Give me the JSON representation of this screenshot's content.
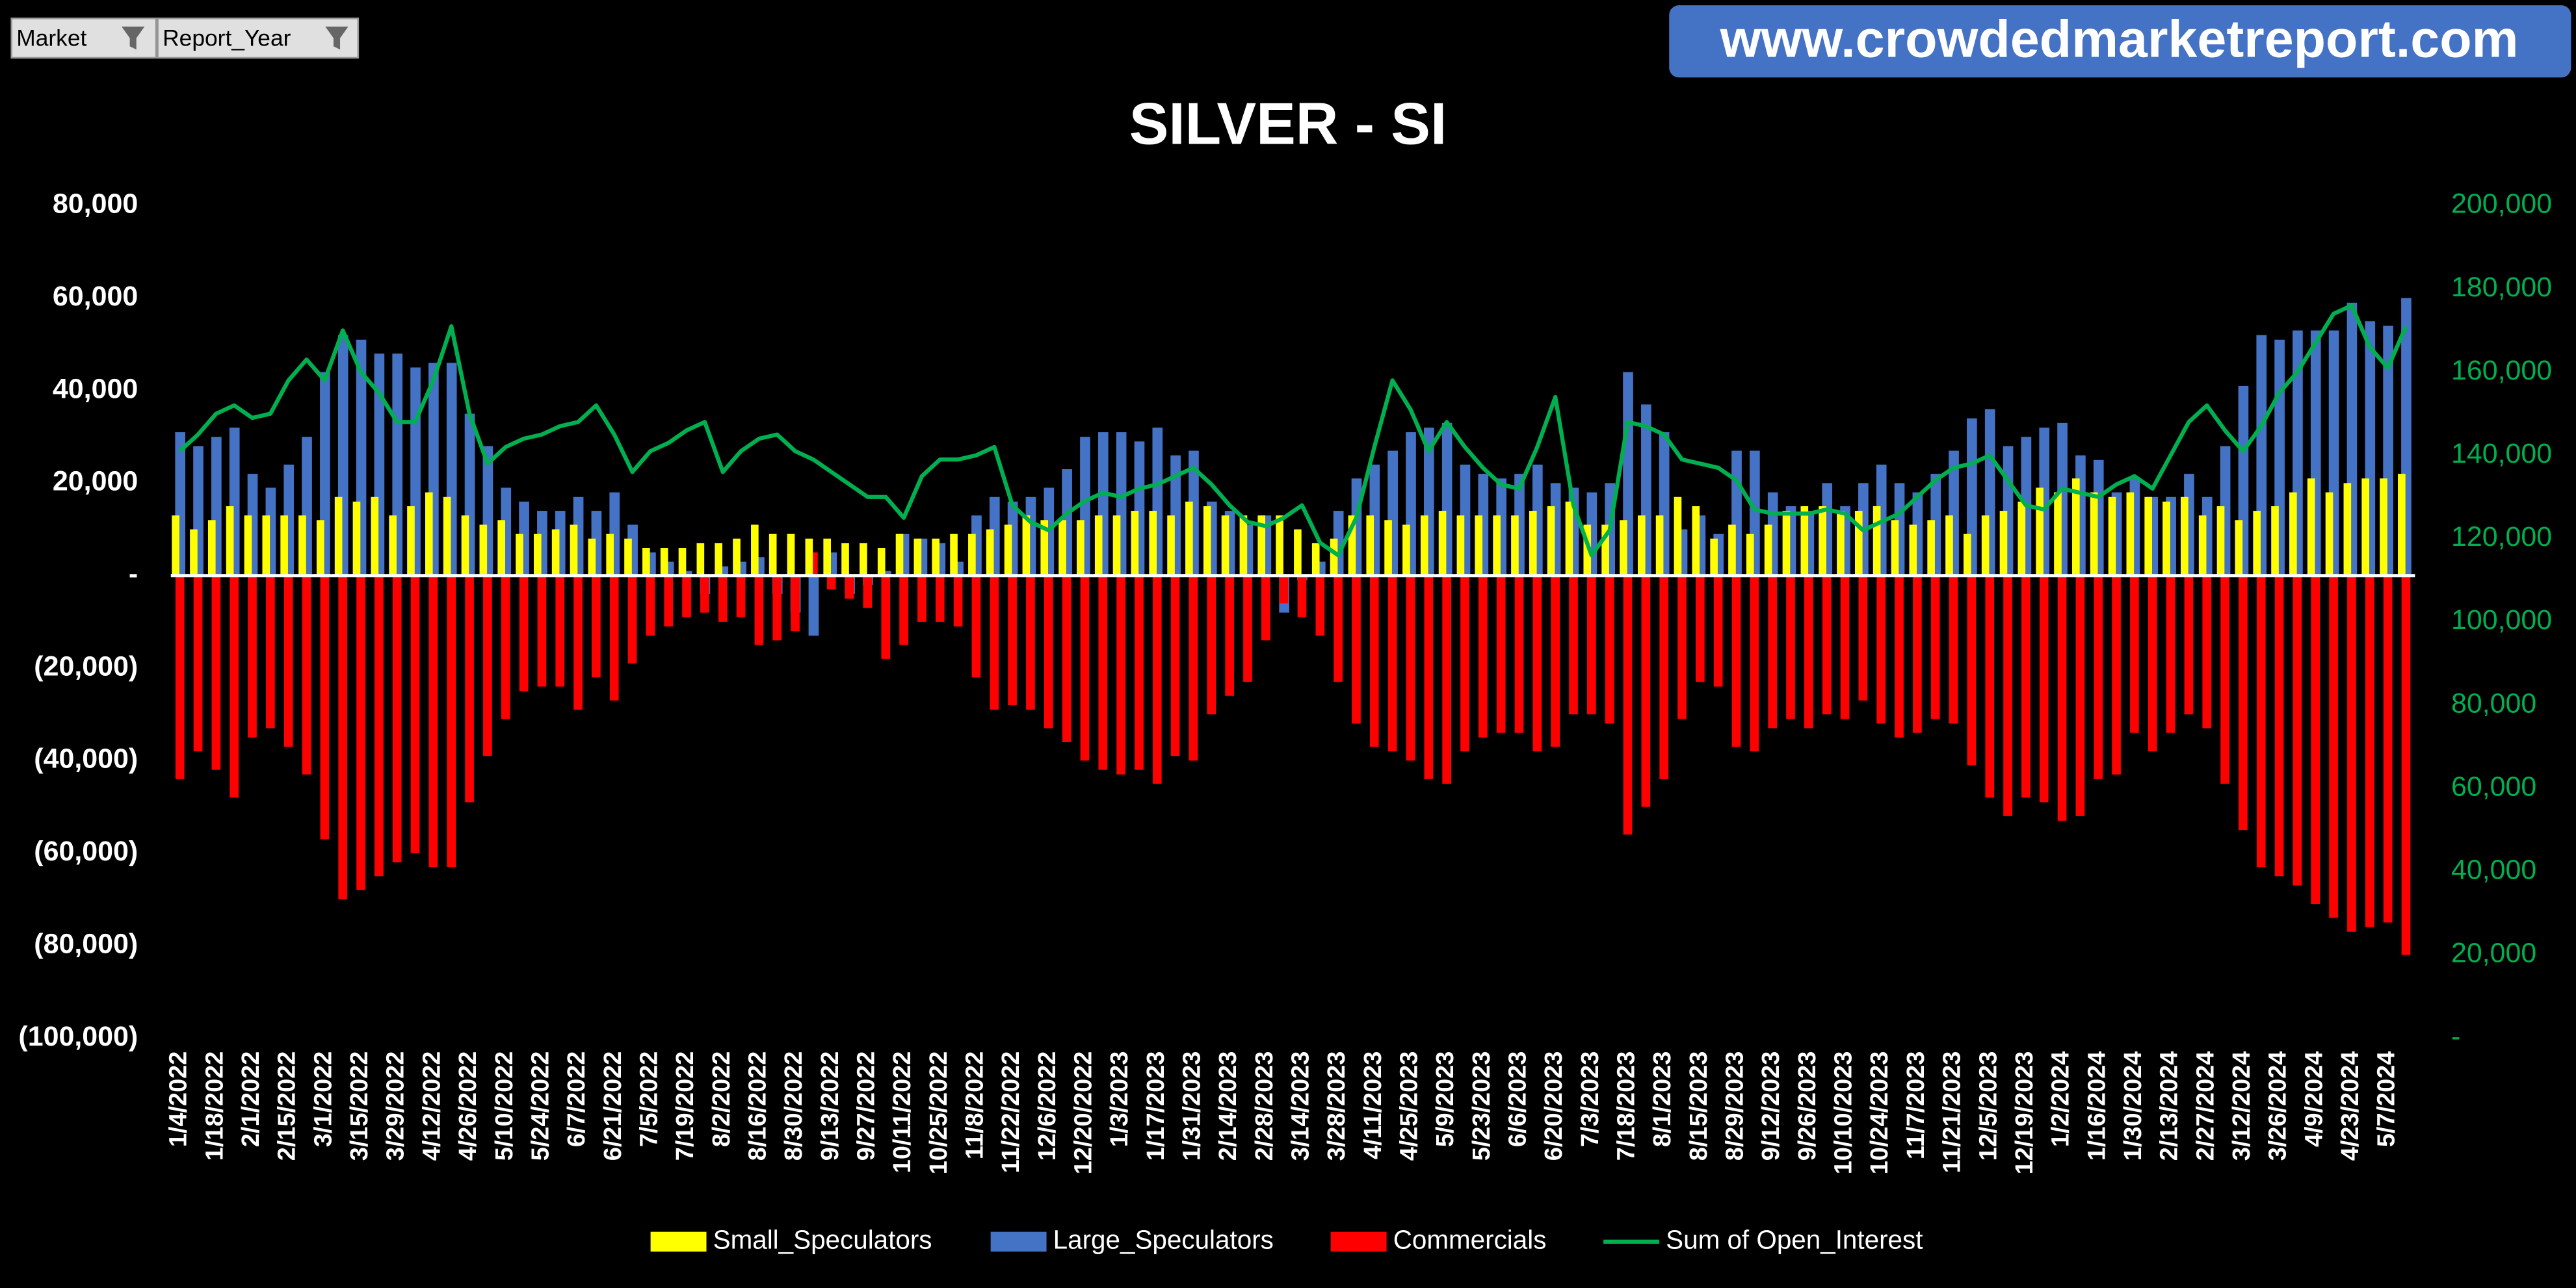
{
  "filters": [
    "Market",
    "Report_Year"
  ],
  "banner": "www.crowdedmarketreport.com",
  "chart_data": {
    "type": "bar",
    "title": "SILVER - SI",
    "categories": [
      "1/4/2022",
      null,
      "1/18/2022",
      null,
      "2/1/2022",
      null,
      "2/15/2022",
      null,
      "3/1/2022",
      null,
      "3/15/2022",
      null,
      "3/29/2022",
      null,
      "4/12/2022",
      null,
      "4/26/2022",
      null,
      "5/10/2022",
      null,
      "5/24/2022",
      null,
      "6/7/2022",
      null,
      "6/21/2022",
      null,
      "7/5/2022",
      null,
      "7/19/2022",
      null,
      "8/2/2022",
      null,
      "8/16/2022",
      null,
      "8/30/2022",
      null,
      "9/13/2022",
      null,
      "9/27/2022",
      null,
      "10/11/2022",
      null,
      "10/25/2022",
      null,
      "11/8/2022",
      null,
      "11/22/2022",
      null,
      "12/6/2022",
      null,
      "12/20/2022",
      null,
      "1/3/2023",
      null,
      "1/17/2023",
      null,
      "1/31/2023",
      null,
      "2/14/2023",
      null,
      "2/28/2023",
      null,
      "3/14/2023",
      null,
      "3/28/2023",
      null,
      "4/11/2023",
      null,
      "4/25/2023",
      null,
      "5/9/2023",
      null,
      "5/23/2023",
      null,
      "6/6/2023",
      null,
      "6/20/2023",
      null,
      "7/3/2023",
      null,
      "7/18/2023",
      null,
      "8/1/2023",
      null,
      "8/15/2023",
      null,
      "8/29/2023",
      null,
      "9/12/2023",
      null,
      "9/26/2023",
      null,
      "10/10/2023",
      null,
      "10/24/2023",
      null,
      "11/7/2023",
      null,
      "11/21/2023",
      null,
      "12/5/2023",
      null,
      "12/19/2023",
      null,
      "1/2/2024",
      null,
      "1/16/2024",
      null,
      "1/30/2024",
      null,
      "2/13/2024",
      null,
      "2/27/2024",
      null,
      "3/12/2024",
      null,
      "3/26/2024",
      null,
      "4/9/2024",
      null,
      "4/23/2024",
      null,
      "5/7/2024",
      null
    ],
    "series": [
      {
        "name": "Small_Speculators",
        "color": "#ffff00",
        "values": [
          13000,
          10000,
          12000,
          15000,
          13000,
          13000,
          13000,
          13000,
          12000,
          17000,
          16000,
          17000,
          13000,
          15000,
          18000,
          17000,
          13000,
          11000,
          12000,
          9000,
          9000,
          10000,
          11000,
          8000,
          9000,
          8000,
          6000,
          6000,
          6000,
          7000,
          7000,
          8000,
          11000,
          9000,
          9000,
          8000,
          8000,
          7000,
          7000,
          6000,
          9000,
          8000,
          8000,
          9000,
          9000,
          10000,
          11000,
          13000,
          12000,
          12000,
          12000,
          13000,
          13000,
          14000,
          14000,
          13000,
          16000,
          15000,
          13000,
          13000,
          13000,
          13000,
          10000,
          7000,
          8000,
          13000,
          13000,
          12000,
          11000,
          13000,
          14000,
          13000,
          13000,
          13000,
          13000,
          14000,
          15000,
          16000,
          11000,
          11000,
          12000,
          13000,
          13000,
          17000,
          15000,
          8000,
          11000,
          9000,
          11000,
          14000,
          15000,
          15000,
          14000,
          14000,
          15000,
          12000,
          11000,
          12000,
          13000,
          9000,
          13000,
          14000,
          16000,
          19000,
          18000,
          21000,
          18000,
          17000,
          18000,
          17000,
          16000,
          17000,
          13000,
          15000,
          12000,
          14000,
          15000,
          18000,
          21000,
          18000,
          20000,
          21000,
          21000,
          22000
        ]
      },
      {
        "name": "Large_Speculators",
        "color": "#4472c4",
        "values": [
          31000,
          28000,
          30000,
          32000,
          22000,
          19000,
          24000,
          30000,
          44000,
          52000,
          51000,
          48000,
          48000,
          45000,
          46000,
          46000,
          35000,
          28000,
          19000,
          16000,
          14000,
          14000,
          17000,
          14000,
          18000,
          11000,
          5000,
          3000,
          1000,
          -4000,
          2000,
          3000,
          4000,
          -4000,
          -8000,
          -13000,
          5000,
          -4000,
          -2000,
          1000,
          9000,
          8000,
          7000,
          3000,
          13000,
          17000,
          16000,
          17000,
          19000,
          23000,
          30000,
          31000,
          31000,
          29000,
          32000,
          26000,
          27000,
          16000,
          14000,
          11000,
          13000,
          -8000,
          -1000,
          3000,
          14000,
          21000,
          24000,
          27000,
          31000,
          32000,
          33000,
          24000,
          22000,
          21000,
          22000,
          24000,
          20000,
          19000,
          18000,
          20000,
          44000,
          37000,
          31000,
          10000,
          13000,
          9000,
          27000,
          27000,
          18000,
          15000,
          14000,
          20000,
          15000,
          20000,
          24000,
          20000,
          18000,
          22000,
          27000,
          34000,
          36000,
          28000,
          30000,
          32000,
          33000,
          26000,
          25000,
          18000,
          21000,
          17000,
          17000,
          22000,
          17000,
          28000,
          41000,
          52000,
          51000,
          53000,
          53000,
          53000,
          59000,
          55000,
          54000,
          60000
        ]
      },
      {
        "name": "Commercials",
        "color": "#ff0000",
        "values": [
          -44000,
          -38000,
          -42000,
          -48000,
          -35000,
          -33000,
          -37000,
          -43000,
          -57000,
          -70000,
          -68000,
          -65000,
          -62000,
          -60000,
          -63000,
          -63000,
          -49000,
          -39000,
          -31000,
          -25000,
          -24000,
          -24000,
          -29000,
          -22000,
          -27000,
          -19000,
          -13000,
          -11000,
          -9000,
          -8000,
          -10000,
          -9000,
          -15000,
          -14000,
          -12000,
          5000,
          -3000,
          -5000,
          -7000,
          -18000,
          -15000,
          -10000,
          -10000,
          -11000,
          -22000,
          -29000,
          -28000,
          -29000,
          -33000,
          -36000,
          -40000,
          -42000,
          -43000,
          -42000,
          -45000,
          -39000,
          -40000,
          -30000,
          -26000,
          -23000,
          -14000,
          -6000,
          -9000,
          -13000,
          -23000,
          -32000,
          -37000,
          -38000,
          -40000,
          -44000,
          -45000,
          -38000,
          -35000,
          -34000,
          -34000,
          -38000,
          -37000,
          -30000,
          -30000,
          -32000,
          -56000,
          -50000,
          -44000,
          -31000,
          -23000,
          -24000,
          -37000,
          -38000,
          -33000,
          -31000,
          -33000,
          -30000,
          -31000,
          -27000,
          -32000,
          -35000,
          -34000,
          -31000,
          -32000,
          -41000,
          -48000,
          -52000,
          -48000,
          -49000,
          -53000,
          -52000,
          -44000,
          -43000,
          -34000,
          -38000,
          -34000,
          -30000,
          -33000,
          -45000,
          -55000,
          -63000,
          -65000,
          -67000,
          -71000,
          -74000,
          -77000,
          -76000,
          -75000,
          -82000
        ]
      },
      {
        "name": "Sum of Open_Interest",
        "color": "#00b050",
        "type": "line",
        "axis": "y2",
        "values": [
          141000,
          145000,
          150000,
          152000,
          149000,
          150000,
          158000,
          163000,
          158000,
          170000,
          160000,
          155000,
          148000,
          148000,
          158000,
          171000,
          150000,
          138000,
          142000,
          144000,
          145000,
          147000,
          148000,
          152000,
          145000,
          136000,
          141000,
          143000,
          146000,
          148000,
          136000,
          141000,
          144000,
          145000,
          141000,
          139000,
          136000,
          133000,
          130000,
          130000,
          125000,
          135000,
          139000,
          139000,
          140000,
          142000,
          128000,
          124000,
          122000,
          126000,
          129000,
          131000,
          130000,
          132000,
          133000,
          135000,
          137000,
          133000,
          128000,
          124000,
          123000,
          125000,
          128000,
          119000,
          116000,
          125000,
          142000,
          158000,
          151000,
          141000,
          148000,
          142000,
          137000,
          133000,
          132000,
          142000,
          154000,
          128000,
          116000,
          122000,
          148000,
          147000,
          145000,
          139000,
          138000,
          137000,
          134000,
          127000,
          126000,
          126000,
          126000,
          127000,
          126000,
          122000,
          124000,
          126000,
          130000,
          134000,
          137000,
          138000,
          140000,
          134000,
          128000,
          127000,
          132000,
          131000,
          130000,
          133000,
          135000,
          132000,
          140000,
          148000,
          152000,
          146000,
          141000,
          147000,
          155000,
          160000,
          167000,
          174000,
          176000,
          166000,
          161000,
          171000
        ]
      }
    ],
    "ylim": [
      -100000,
      80000
    ],
    "yticks": [
      {
        "value": -100000,
        "label": "(100,000)"
      },
      {
        "value": -80000,
        "label": "(80,000)"
      },
      {
        "value": -60000,
        "label": "(60,000)"
      },
      {
        "value": -40000,
        "label": "(40,000)"
      },
      {
        "value": -20000,
        "label": "(20,000)"
      },
      {
        "value": 0,
        "label": "-"
      },
      {
        "value": 20000,
        "label": "20,000"
      },
      {
        "value": 40000,
        "label": "40,000"
      },
      {
        "value": 60000,
        "label": "60,000"
      },
      {
        "value": 80000,
        "label": "80,000"
      }
    ],
    "y2lim": [
      0,
      200000
    ],
    "y2ticks": [
      {
        "value": 0,
        "label": "-"
      },
      {
        "value": 20000,
        "label": "20,000"
      },
      {
        "value": 40000,
        "label": "40,000"
      },
      {
        "value": 60000,
        "label": "60,000"
      },
      {
        "value": 80000,
        "label": "80,000"
      },
      {
        "value": 100000,
        "label": "100,000"
      },
      {
        "value": 120000,
        "label": "120,000"
      },
      {
        "value": 140000,
        "label": "140,000"
      },
      {
        "value": 160000,
        "label": "160,000"
      },
      {
        "value": 180000,
        "label": "180,000"
      },
      {
        "value": 200000,
        "label": "200,000"
      }
    ],
    "legend": "bottom",
    "grid": false
  }
}
